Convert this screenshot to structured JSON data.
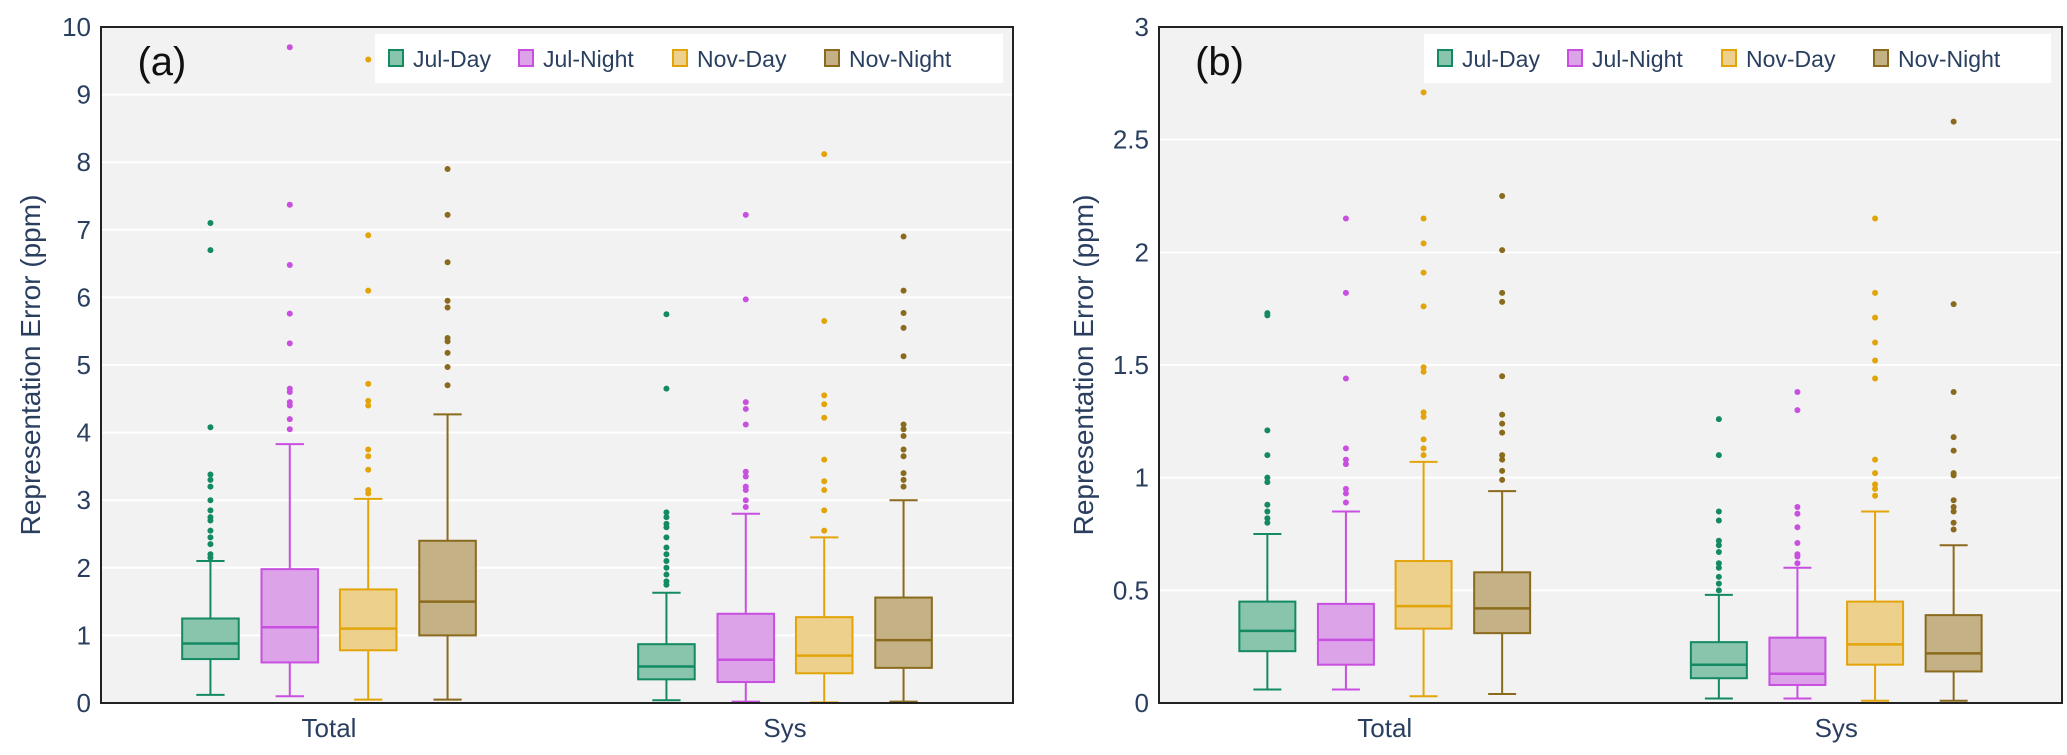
{
  "colors": {
    "Jul-Day": {
      "line": "#138a62",
      "fill": "#89c4ac"
    },
    "Jul-Night": {
      "line": "#c84fe0",
      "fill": "#dca3e9"
    },
    "Nov-Day": {
      "line": "#e3a40a",
      "fill": "#ecd08c"
    },
    "Nov-Night": {
      "line": "#8a6a1c",
      "fill": "#c4b286"
    },
    "plot_bg": "#f2f2f2",
    "grid": "#ffffff"
  },
  "chart_data": [
    {
      "type": "box",
      "panel_label": "(a)",
      "ylabel": "Representation Error (ppm)",
      "ylim": [
        0,
        10
      ],
      "yticks": [
        0,
        1,
        2,
        3,
        4,
        5,
        6,
        7,
        8,
        9,
        10
      ],
      "grid": true,
      "legend_position": "top-right",
      "legend": [
        "Jul-Day",
        "Jul-Night",
        "Nov-Day",
        "Nov-Night"
      ],
      "categories": [
        "Total",
        "Sys"
      ],
      "series": [
        {
          "name": "Jul-Day",
          "boxes": [
            {
              "low": 0.12,
              "q1": 0.65,
              "median": 0.88,
              "q3": 1.25,
              "high": 2.1,
              "outliers": [
                2.15,
                2.2,
                2.35,
                2.45,
                2.55,
                2.7,
                2.75,
                2.85,
                3.0,
                3.2,
                3.3,
                3.38,
                4.08,
                6.7,
                7.1
              ]
            },
            {
              "low": 0.04,
              "q1": 0.35,
              "median": 0.54,
              "q3": 0.87,
              "high": 1.63,
              "outliers": [
                1.75,
                1.8,
                1.9,
                2.0,
                2.1,
                2.2,
                2.3,
                2.45,
                2.6,
                2.65,
                2.75,
                2.82,
                4.65,
                5.75
              ]
            }
          ]
        },
        {
          "name": "Jul-Night",
          "boxes": [
            {
              "low": 0.1,
              "q1": 0.6,
              "median": 1.12,
              "q3": 1.98,
              "high": 3.83,
              "outliers": [
                4.05,
                4.2,
                4.4,
                4.45,
                4.6,
                4.65,
                5.32,
                5.76,
                6.48,
                7.37,
                9.7
              ]
            },
            {
              "low": 0.02,
              "q1": 0.31,
              "median": 0.64,
              "q3": 1.32,
              "high": 2.8,
              "outliers": [
                2.9,
                3.0,
                3.15,
                3.2,
                3.35,
                3.42,
                4.12,
                4.35,
                4.45,
                5.97,
                7.22
              ]
            }
          ]
        },
        {
          "name": "Nov-Day",
          "boxes": [
            {
              "low": 0.05,
              "q1": 0.78,
              "median": 1.1,
              "q3": 1.68,
              "high": 3.02,
              "outliers": [
                3.1,
                3.15,
                3.45,
                3.65,
                3.75,
                4.4,
                4.47,
                4.72,
                6.1,
                6.92,
                9.52
              ]
            },
            {
              "low": 0.01,
              "q1": 0.44,
              "median": 0.7,
              "q3": 1.27,
              "high": 2.45,
              "outliers": [
                2.55,
                2.85,
                3.15,
                3.28,
                3.6,
                4.22,
                4.42,
                4.55,
                5.65,
                8.12
              ]
            }
          ]
        },
        {
          "name": "Nov-Night",
          "boxes": [
            {
              "low": 0.05,
              "q1": 1.0,
              "median": 1.5,
              "q3": 2.4,
              "high": 4.27,
              "outliers": [
                4.7,
                4.97,
                5.18,
                5.35,
                5.4,
                5.85,
                5.95,
                6.52,
                7.22,
                7.9
              ]
            },
            {
              "low": 0.02,
              "q1": 0.52,
              "median": 0.93,
              "q3": 1.56,
              "high": 3.0,
              "outliers": [
                3.2,
                3.3,
                3.4,
                3.65,
                3.75,
                3.95,
                4.05,
                4.12,
                5.13,
                5.55,
                5.77,
                6.1,
                6.9
              ]
            }
          ]
        }
      ]
    },
    {
      "type": "box",
      "panel_label": "(b)",
      "ylabel": "Representation Error (ppm)",
      "ylim": [
        0,
        3
      ],
      "yticks": [
        0,
        0.5,
        1,
        1.5,
        2,
        2.5,
        3
      ],
      "grid": true,
      "legend_position": "top-right",
      "legend": [
        "Jul-Day",
        "Jul-Night",
        "Nov-Day",
        "Nov-Night"
      ],
      "categories": [
        "Total",
        "Sys"
      ],
      "series": [
        {
          "name": "Jul-Day",
          "boxes": [
            {
              "low": 0.06,
              "q1": 0.23,
              "median": 0.32,
              "q3": 0.45,
              "high": 0.75,
              "outliers": [
                0.8,
                0.82,
                0.85,
                0.88,
                0.98,
                1.0,
                1.1,
                1.21,
                1.72,
                1.73
              ]
            },
            {
              "low": 0.02,
              "q1": 0.11,
              "median": 0.17,
              "q3": 0.27,
              "high": 0.48,
              "outliers": [
                0.5,
                0.53,
                0.56,
                0.6,
                0.62,
                0.67,
                0.7,
                0.72,
                0.81,
                0.85,
                1.1,
                1.26
              ]
            }
          ]
        },
        {
          "name": "Jul-Night",
          "boxes": [
            {
              "low": 0.06,
              "q1": 0.17,
              "median": 0.28,
              "q3": 0.44,
              "high": 0.85,
              "outliers": [
                0.89,
                0.93,
                0.95,
                1.06,
                1.08,
                1.13,
                1.44,
                1.82,
                2.15
              ]
            },
            {
              "low": 0.02,
              "q1": 0.08,
              "median": 0.13,
              "q3": 0.29,
              "high": 0.6,
              "outliers": [
                0.62,
                0.65,
                0.66,
                0.71,
                0.78,
                0.84,
                0.87,
                1.3,
                1.38
              ]
            }
          ]
        },
        {
          "name": "Nov-Day",
          "boxes": [
            {
              "low": 0.03,
              "q1": 0.33,
              "median": 0.43,
              "q3": 0.63,
              "high": 1.07,
              "outliers": [
                1.1,
                1.13,
                1.17,
                1.27,
                1.29,
                1.47,
                1.49,
                1.76,
                1.91,
                2.04,
                2.15,
                2.71
              ]
            },
            {
              "low": 0.01,
              "q1": 0.17,
              "median": 0.26,
              "q3": 0.45,
              "high": 0.85,
              "outliers": [
                0.92,
                0.95,
                0.97,
                1.02,
                1.08,
                1.44,
                1.52,
                1.6,
                1.71,
                1.82,
                2.15
              ]
            }
          ]
        },
        {
          "name": "Nov-Night",
          "boxes": [
            {
              "low": 0.04,
              "q1": 0.31,
              "median": 0.42,
              "q3": 0.58,
              "high": 0.94,
              "outliers": [
                0.99,
                1.03,
                1.08,
                1.1,
                1.2,
                1.24,
                1.28,
                1.45,
                1.78,
                1.82,
                2.01,
                2.25
              ]
            },
            {
              "low": 0.01,
              "q1": 0.14,
              "median": 0.22,
              "q3": 0.39,
              "high": 0.7,
              "outliers": [
                0.77,
                0.8,
                0.85,
                0.87,
                0.9,
                1.01,
                1.02,
                1.12,
                1.18,
                1.38,
                1.77,
                2.58
              ]
            }
          ]
        }
      ]
    }
  ]
}
